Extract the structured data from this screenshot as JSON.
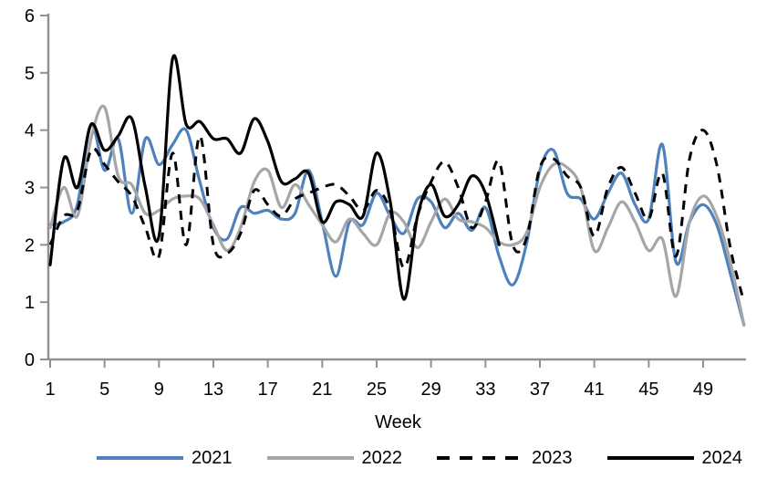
{
  "chart_data": {
    "type": "line",
    "title": "",
    "xlabel": "Week",
    "ylim": [
      0,
      6
    ],
    "yticks": [
      0,
      1,
      2,
      3,
      4,
      5,
      6
    ],
    "xticks": [
      1,
      5,
      9,
      13,
      17,
      21,
      25,
      29,
      33,
      37,
      41,
      45,
      49
    ],
    "x_range": [
      1,
      52
    ],
    "grid": false,
    "legend_position": "bottom",
    "colors": {
      "axis": "#919191",
      "text": "#000000"
    },
    "series": [
      {
        "name": "2021",
        "color": "#4F81BD",
        "style": "solid",
        "values": [
          2.35,
          2.4,
          2.7,
          4.1,
          3.3,
          3.85,
          2.55,
          3.85,
          3.4,
          3.75,
          4.0,
          3.1,
          2.3,
          2.1,
          2.65,
          2.55,
          2.6,
          2.45,
          2.55,
          3.3,
          2.4,
          1.45,
          2.4,
          2.35,
          2.9,
          2.5,
          2.2,
          2.8,
          2.75,
          2.3,
          2.55,
          2.25,
          2.65,
          1.8,
          1.3,
          2.0,
          3.3,
          3.65,
          2.9,
          2.8,
          2.45,
          2.9,
          3.25,
          2.7,
          2.45,
          3.75,
          1.7,
          2.4,
          2.7,
          2.35,
          1.5,
          0.6
        ]
      },
      {
        "name": "2022",
        "color": "#A6A6A6",
        "style": "solid",
        "values": [
          2.3,
          3.0,
          2.5,
          3.85,
          4.4,
          3.2,
          3.05,
          2.55,
          2.6,
          2.8,
          2.85,
          2.8,
          2.35,
          1.9,
          2.3,
          3.1,
          3.3,
          2.65,
          3.05,
          2.7,
          2.35,
          2.05,
          2.45,
          2.2,
          2.0,
          2.55,
          2.4,
          1.95,
          2.4,
          2.8,
          2.45,
          2.4,
          2.3,
          2.05,
          2.0,
          2.2,
          3.0,
          3.4,
          3.35,
          3.0,
          1.9,
          2.3,
          2.75,
          2.4,
          1.9,
          2.1,
          1.1,
          2.4,
          2.85,
          2.5,
          1.7,
          0.6
        ]
      },
      {
        "name": "2023",
        "color": "#000000",
        "style": "dashed",
        "values": [
          2.0,
          2.5,
          2.6,
          3.65,
          3.4,
          3.1,
          2.85,
          2.3,
          1.8,
          3.6,
          2.0,
          3.9,
          2.0,
          1.85,
          2.2,
          2.95,
          2.7,
          2.5,
          2.8,
          2.9,
          3.0,
          3.05,
          2.85,
          2.6,
          2.95,
          2.6,
          1.6,
          2.5,
          3.1,
          3.45,
          3.0,
          2.3,
          2.75,
          3.45,
          2.0,
          2.1,
          3.35,
          3.5,
          3.2,
          3.0,
          2.15,
          3.0,
          3.35,
          2.9,
          2.45,
          3.25,
          1.8,
          3.5,
          4.0,
          3.4,
          1.95,
          1.0
        ]
      },
      {
        "name": "2024",
        "color": "#000000",
        "style": "solid",
        "values": [
          1.65,
          3.5,
          3.0,
          4.1,
          3.65,
          3.9,
          4.2,
          3.0,
          2.15,
          5.25,
          4.1,
          4.15,
          3.85,
          3.85,
          3.6,
          4.2,
          3.8,
          3.1,
          3.15,
          3.25,
          2.4,
          2.75,
          2.7,
          2.5,
          3.6,
          2.75,
          1.05,
          2.5,
          3.05,
          2.5,
          2.7,
          3.2,
          2.9,
          2.0
        ]
      }
    ]
  }
}
